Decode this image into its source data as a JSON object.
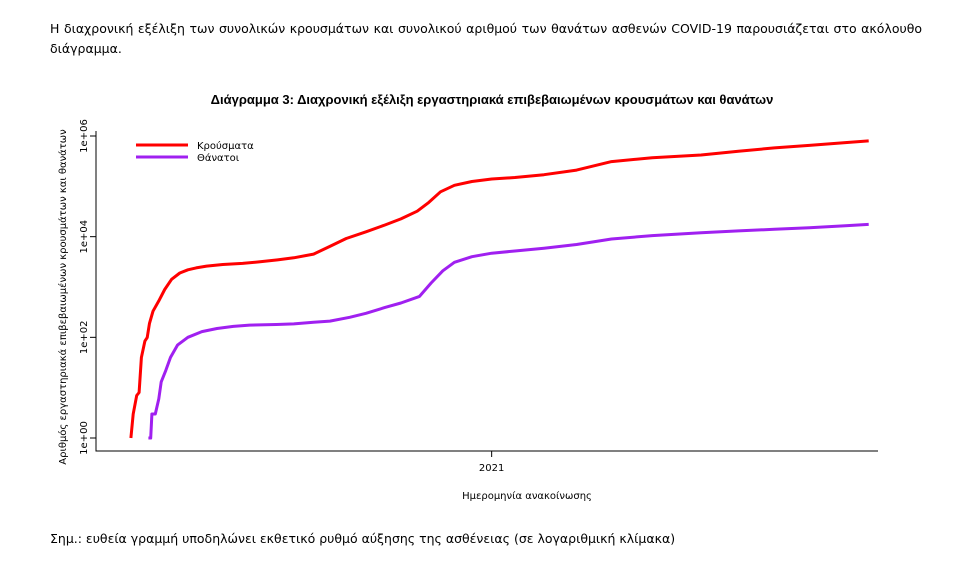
{
  "intro_text": "Η διαχρονική εξέλιξη των συνολικών κρουσμάτων και συνολικού αριθμού των θανάτων ασθενών COVID-19 παρουσιάζεται στο ακόλουθο διάγραμμα.",
  "note_text": "Σημ.: ευθεία γραμμή υποδηλώνει εκθετικό ρυθμό αύξησης της ασθένειας (σε λογαριθμική κλίμακα)",
  "chart_data": {
    "type": "line",
    "title": "Διάγραμμα 3: Διαχρονική εξέλιξη εργαστηριακά επιβεβαιωμένων κρουσμάτων και θανάτων",
    "xlabel": "Ημερομηνία ανακοίνωσης",
    "ylabel": "Αριθμός εργαστηριακά επιβεβαιωμένων κρουσμάτων και θανάτων",
    "y_scale": "log10",
    "ylim": [
      1,
      1000000
    ],
    "y_ticks": [
      {
        "value": 1,
        "label": "1e+00"
      },
      {
        "value": 100,
        "label": "1e+02"
      },
      {
        "value": 10000,
        "label": "1e+04"
      },
      {
        "value": 1000000,
        "label": "1e+06"
      }
    ],
    "xlim": [
      "2020-01-27",
      "2021-11-29"
    ],
    "x_ticks": [
      {
        "value": "2021-01-01",
        "label": "2021"
      }
    ],
    "grid": false,
    "legend_position": "top-left",
    "series": [
      {
        "name": "Κρούσματα",
        "color": "#ff0000",
        "points": [
          [
            "2020-02-26",
            1
          ],
          [
            "2020-02-28",
            3
          ],
          [
            "2020-03-02",
            7
          ],
          [
            "2020-03-04",
            8
          ],
          [
            "2020-03-06",
            40
          ],
          [
            "2020-03-09",
            84
          ],
          [
            "2020-03-11",
            99
          ],
          [
            "2020-03-13",
            190
          ],
          [
            "2020-03-16",
            330
          ],
          [
            "2020-03-21",
            530
          ],
          [
            "2020-03-26",
            890
          ],
          [
            "2020-04-01",
            1420
          ],
          [
            "2020-04-08",
            1900
          ],
          [
            "2020-04-15",
            2200
          ],
          [
            "2020-04-22",
            2400
          ],
          [
            "2020-05-01",
            2600
          ],
          [
            "2020-05-15",
            2800
          ],
          [
            "2020-06-01",
            2950
          ],
          [
            "2020-06-15",
            3150
          ],
          [
            "2020-07-01",
            3450
          ],
          [
            "2020-07-15",
            3800
          ],
          [
            "2020-08-01",
            4500
          ],
          [
            "2020-08-15",
            6400
          ],
          [
            "2020-08-29",
            9200
          ],
          [
            "2020-09-15",
            12500
          ],
          [
            "2020-10-01",
            17000
          ],
          [
            "2020-10-15",
            22500
          ],
          [
            "2020-10-29",
            32000
          ],
          [
            "2020-11-08",
            48000
          ],
          [
            "2020-11-18",
            78000
          ],
          [
            "2020-11-30",
            105000
          ],
          [
            "2020-12-15",
            125000
          ],
          [
            "2021-01-01",
            140000
          ],
          [
            "2021-01-21",
            150000
          ],
          [
            "2021-02-15",
            170000
          ],
          [
            "2021-03-15",
            210000
          ],
          [
            "2021-04-14",
            310000
          ],
          [
            "2021-05-19",
            370000
          ],
          [
            "2021-06-30",
            420000
          ],
          [
            "2021-08-01",
            500000
          ],
          [
            "2021-09-01",
            580000
          ],
          [
            "2021-10-01",
            650000
          ],
          [
            "2021-11-01",
            740000
          ],
          [
            "2021-11-21",
            800000
          ]
        ]
      },
      {
        "name": "Θάνατοι",
        "color": "#a020f0",
        "points": [
          [
            "2020-03-12",
            1
          ],
          [
            "2020-03-14",
            1
          ],
          [
            "2020-03-15",
            3
          ],
          [
            "2020-03-18",
            3
          ],
          [
            "2020-03-21",
            6
          ],
          [
            "2020-03-23",
            13
          ],
          [
            "2020-03-27",
            22
          ],
          [
            "2020-03-31",
            40
          ],
          [
            "2020-04-06",
            70
          ],
          [
            "2020-04-15",
            100
          ],
          [
            "2020-04-27",
            130
          ],
          [
            "2020-05-10",
            150
          ],
          [
            "2020-05-24",
            165
          ],
          [
            "2020-06-07",
            175
          ],
          [
            "2020-06-30",
            180
          ],
          [
            "2020-07-15",
            185
          ],
          [
            "2020-08-01",
            200
          ],
          [
            "2020-08-15",
            210
          ],
          [
            "2020-09-01",
            250
          ],
          [
            "2020-09-15",
            300
          ],
          [
            "2020-10-01",
            390
          ],
          [
            "2020-10-15",
            480
          ],
          [
            "2020-10-31",
            650
          ],
          [
            "2020-11-10",
            1200
          ],
          [
            "2020-11-20",
            2100
          ],
          [
            "2020-11-30",
            3100
          ],
          [
            "2020-12-15",
            4000
          ],
          [
            "2021-01-01",
            4700
          ],
          [
            "2021-01-21",
            5200
          ],
          [
            "2021-02-15",
            5900
          ],
          [
            "2021-03-15",
            7000
          ],
          [
            "2021-04-14",
            9000
          ],
          [
            "2021-05-19",
            10500
          ],
          [
            "2021-06-30",
            12000
          ],
          [
            "2021-08-01",
            13000
          ],
          [
            "2021-09-01",
            14000
          ],
          [
            "2021-10-01",
            15000
          ],
          [
            "2021-11-01",
            16500
          ],
          [
            "2021-11-21",
            17500
          ]
        ]
      }
    ]
  }
}
